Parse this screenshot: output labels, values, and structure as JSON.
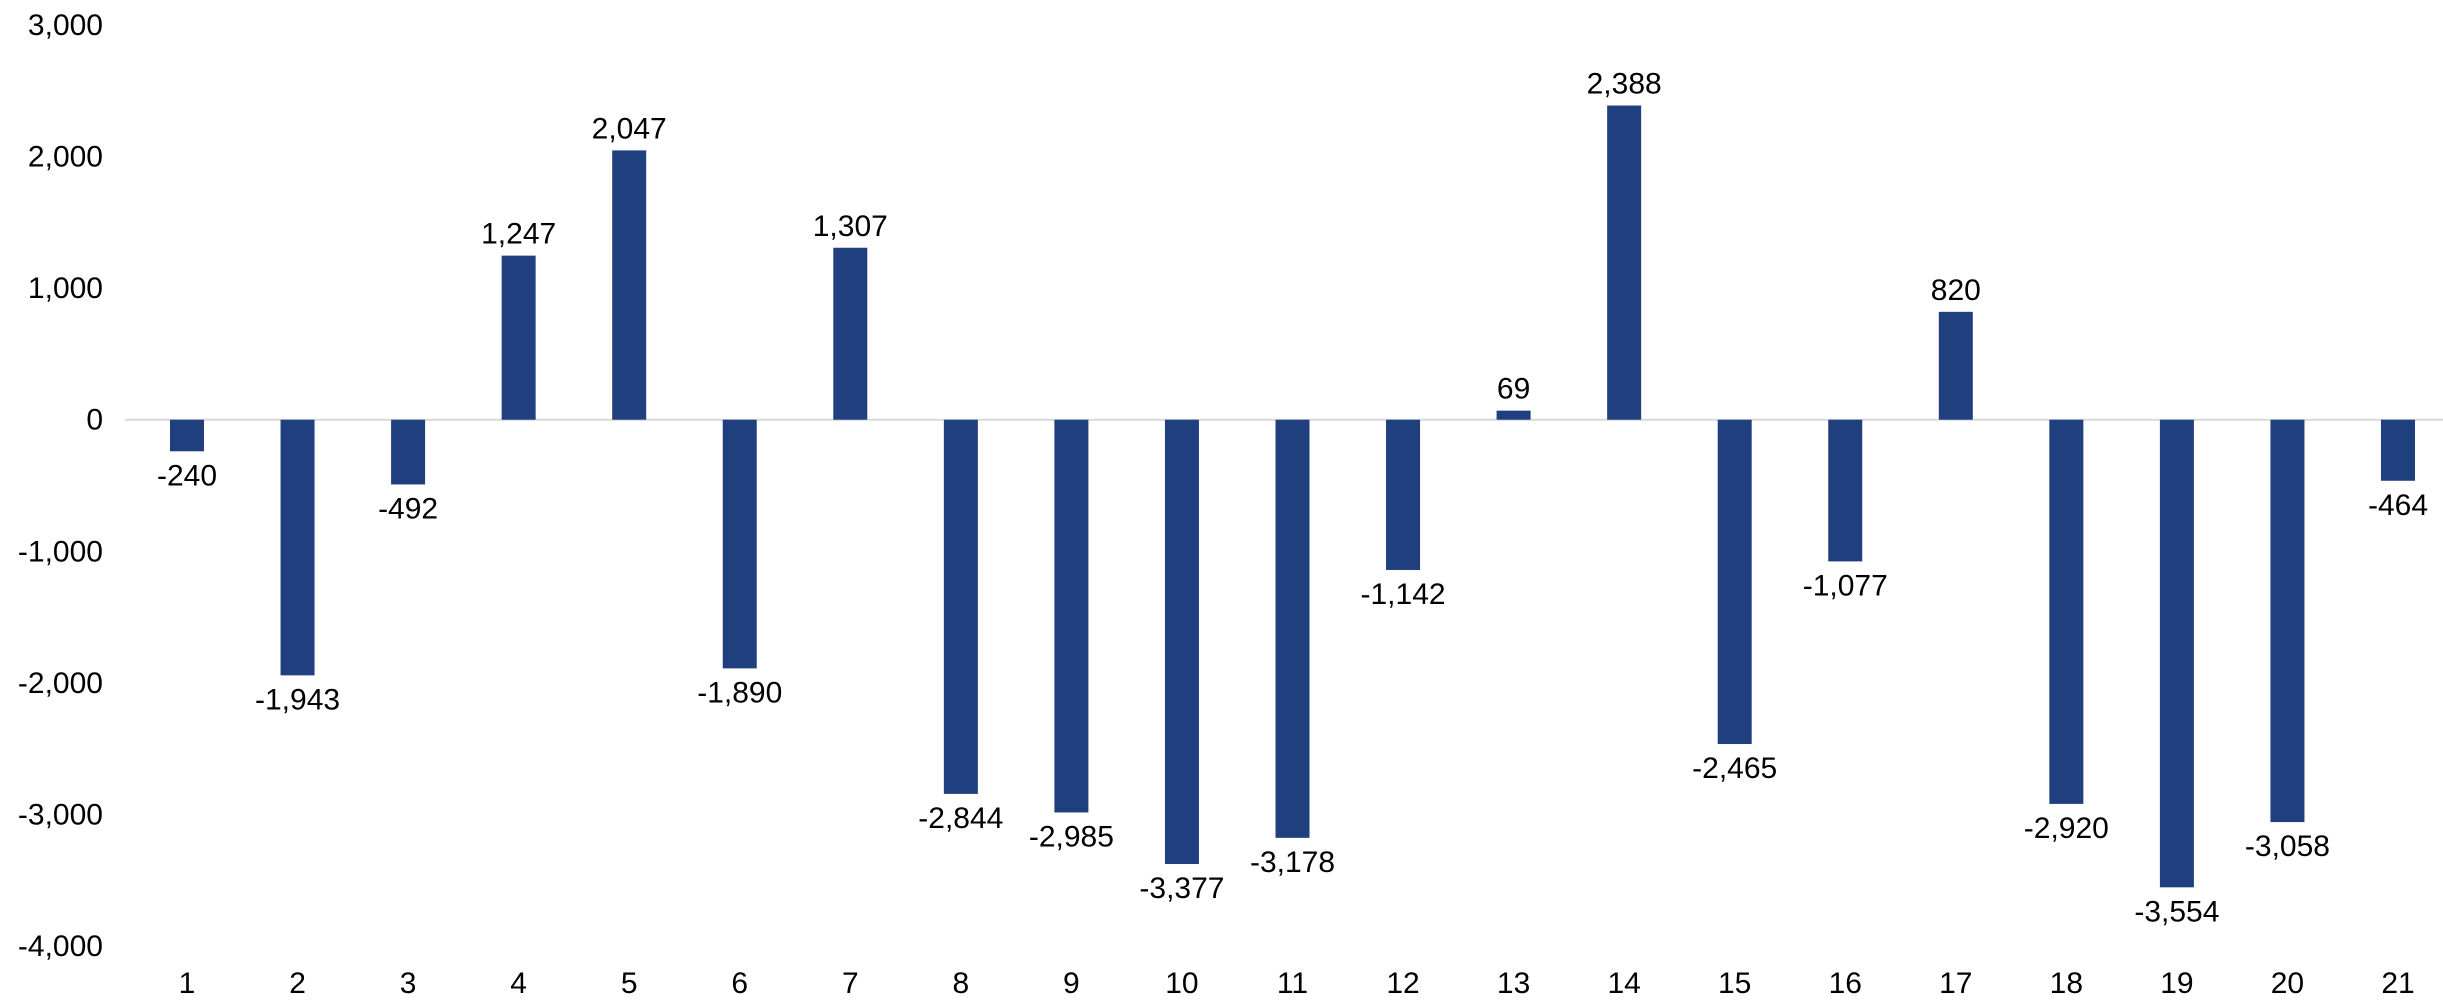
{
  "chart_data": {
    "type": "bar",
    "title": "",
    "xlabel": "",
    "ylabel": "",
    "categories": [
      "1",
      "2",
      "3",
      "4",
      "5",
      "6",
      "7",
      "8",
      "9",
      "10",
      "11",
      "12",
      "13",
      "14",
      "15",
      "16",
      "17",
      "18",
      "19",
      "20",
      "21"
    ],
    "values": [
      -240,
      -1943,
      -492,
      1247,
      2047,
      -1890,
      1307,
      -2844,
      -2985,
      -3377,
      -3178,
      -1142,
      69,
      2388,
      -2465,
      -1077,
      820,
      -2920,
      -3554,
      -3058,
      -464
    ],
    "value_labels": [
      "-240",
      "-1,943",
      "-492",
      "1,247",
      "2,047",
      "-1,890",
      "1,307",
      "-2,844",
      "-2,985",
      "-3,377",
      "-3,178",
      "-1,142",
      "69",
      "2,388",
      "-2,465",
      "-1,077",
      "820",
      "-2,920",
      "-3,554",
      "-3,058",
      "-464"
    ],
    "ylim": [
      -4000,
      3000
    ],
    "yticks": [
      3000,
      2000,
      1000,
      0,
      -1000,
      -2000,
      -3000,
      -4000
    ],
    "ytick_labels": [
      "3,000",
      "2,000",
      "1,000",
      "0",
      "-1,000",
      "-2,000",
      "-3,000",
      "-4,000"
    ],
    "grid": false,
    "legend": "none",
    "bar_color": "#1F3F7F",
    "zero_line_color": "#D9D9D9"
  }
}
